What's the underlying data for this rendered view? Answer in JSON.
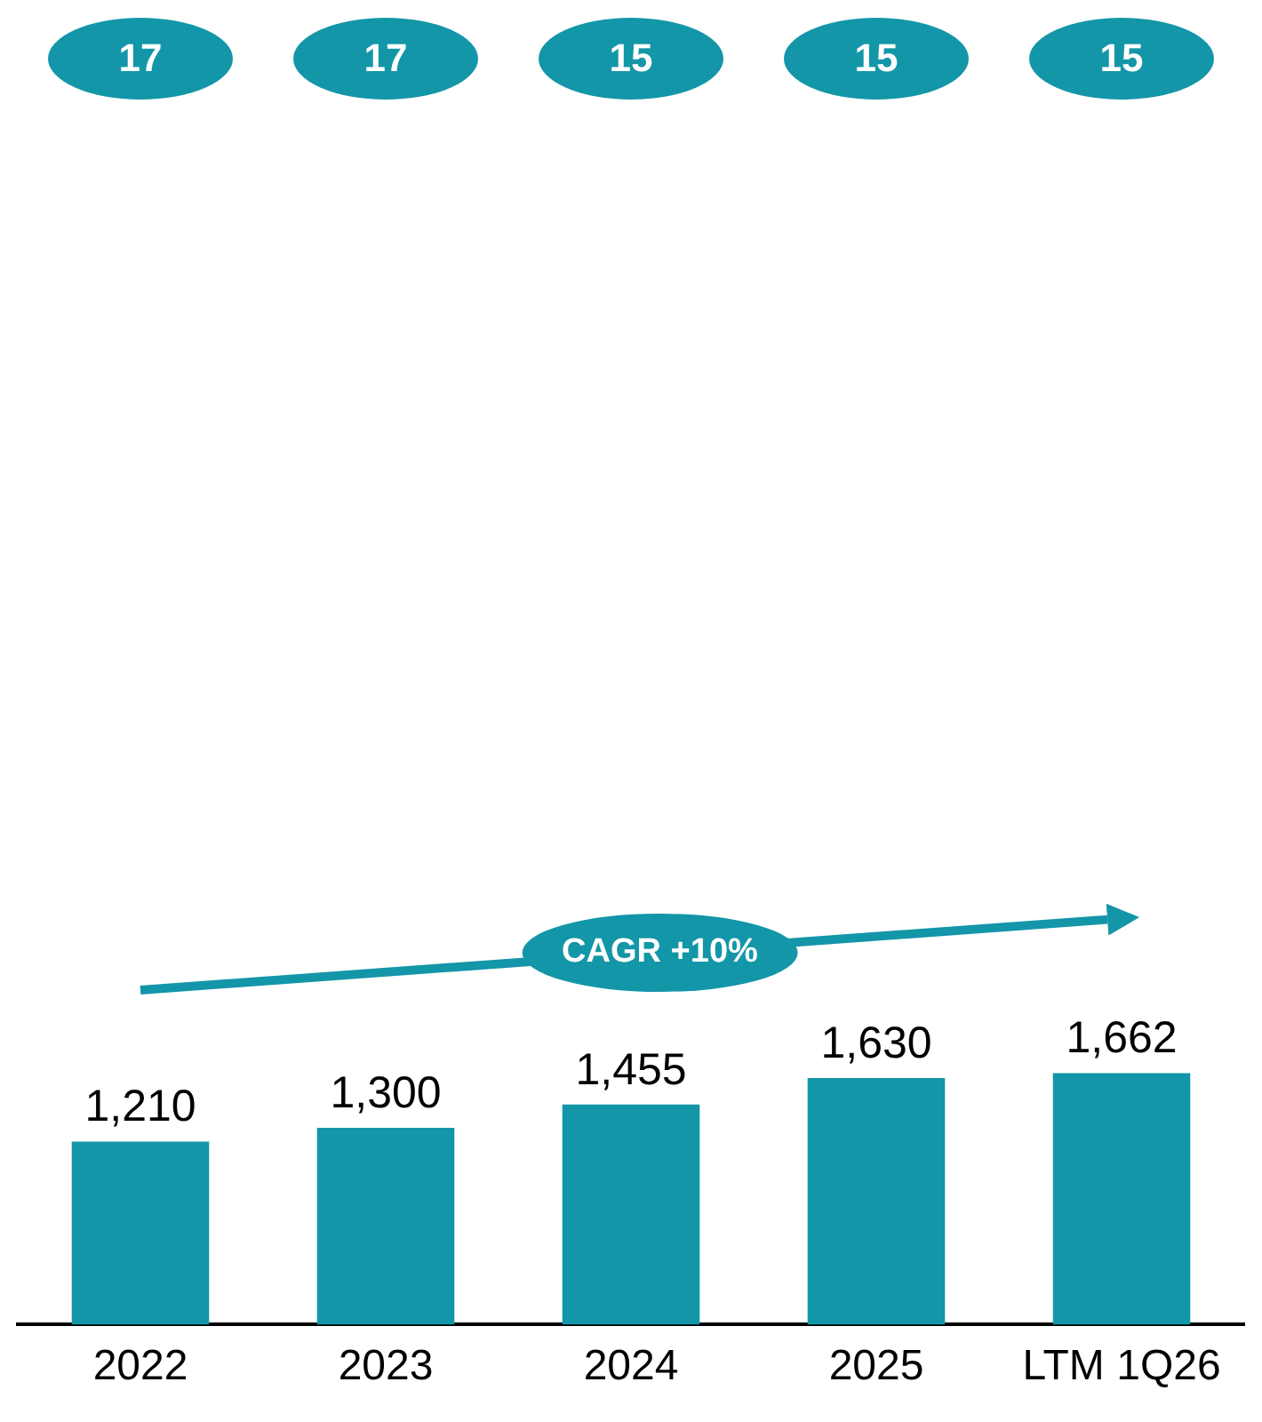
{
  "chart_data": {
    "type": "bar",
    "categories": [
      "2022",
      "2023",
      "2024",
      "2025",
      "LTM 1Q26"
    ],
    "values": [
      1210,
      1300,
      1455,
      1630,
      1662
    ],
    "color": "#1396a8",
    "value_labels": [
      "1,210",
      "1,300",
      "1,455",
      "1,630",
      "1,662"
    ],
    "grid": false,
    "legend": false,
    "tick_labels": "x",
    "annotations": [
      "17",
      "17",
      "15",
      "15",
      "15",
      "CAGR +10%"
    ]
  }
}
